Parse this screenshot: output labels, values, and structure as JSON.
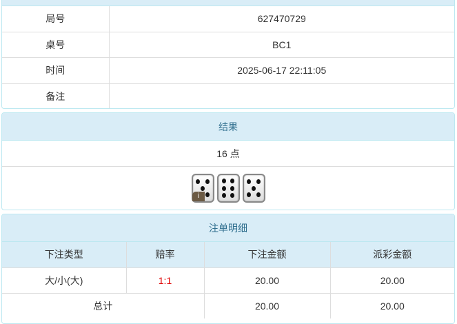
{
  "info": {
    "rows": [
      {
        "label": "局号",
        "value": "627470729"
      },
      {
        "label": "桌号",
        "value": "BC1"
      },
      {
        "label": "时间",
        "value": "2025-06-17 22:11:05"
      },
      {
        "label": "备注",
        "value": ""
      }
    ]
  },
  "result": {
    "title": "结果",
    "points": "16 点",
    "dice": [
      5,
      6,
      5
    ],
    "badge": "i"
  },
  "bets": {
    "title": "注单明细",
    "headers": [
      "下注类型",
      "赔率",
      "下注金额",
      "派彩金额"
    ],
    "rows": [
      {
        "type": "大/小(大)",
        "odds": "1:1",
        "amount": "20.00",
        "payout": "20.00"
      }
    ],
    "total": {
      "label": "总计",
      "amount": "20.00",
      "payout": "20.00"
    },
    "odds_color": "#e00000"
  }
}
